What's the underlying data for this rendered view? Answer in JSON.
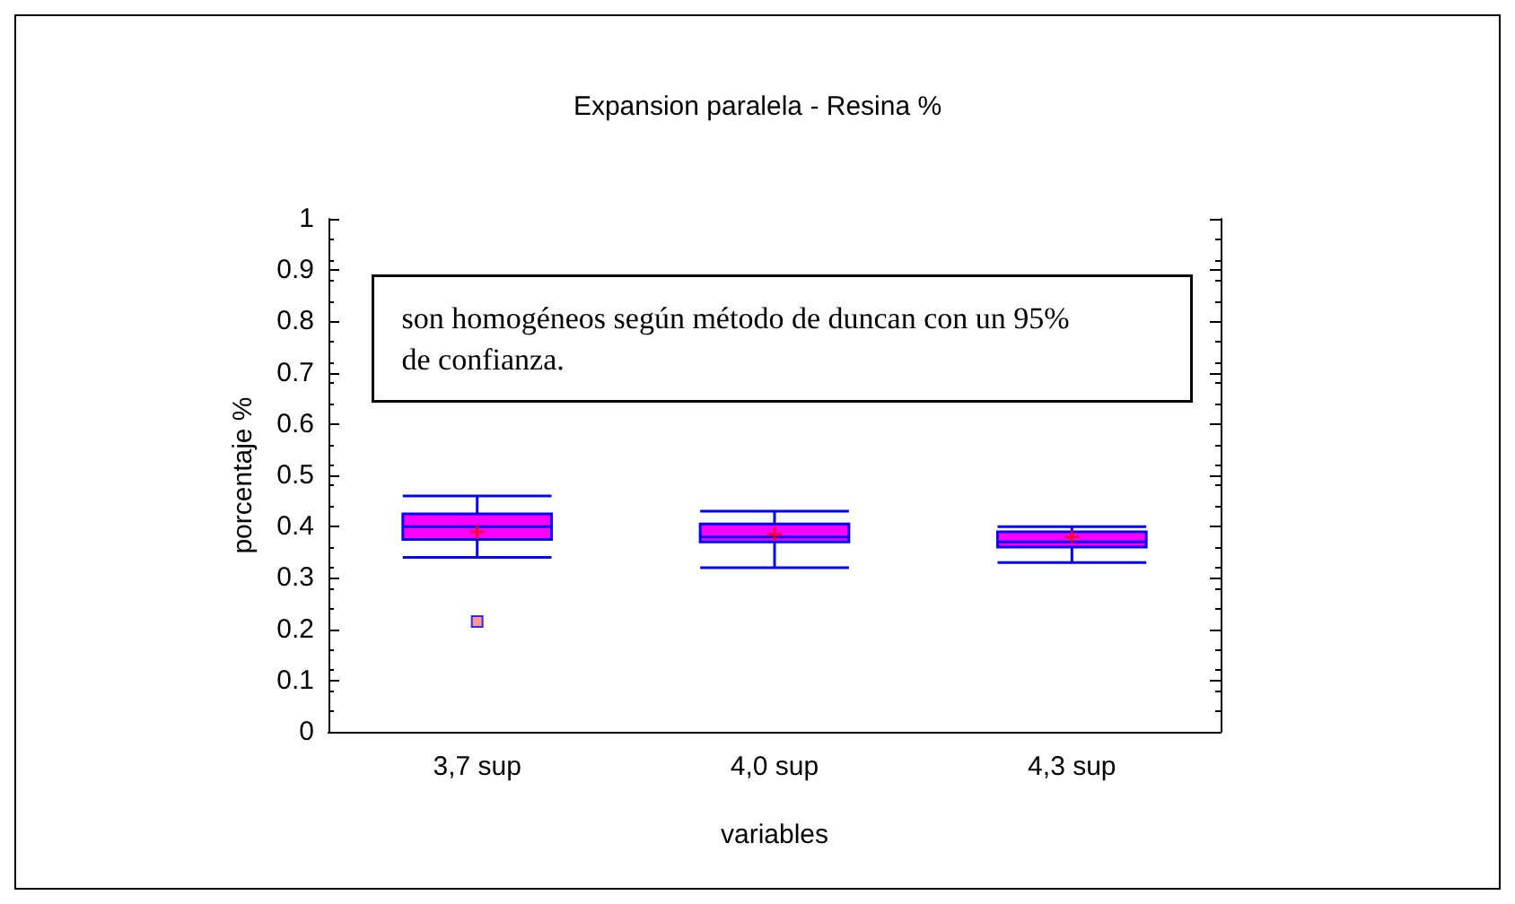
{
  "chart_data": {
    "type": "box",
    "title": "Expansion paralela - Resina %",
    "xlabel": "variables",
    "ylabel": "porcentaje %",
    "categories": [
      "3,7 sup",
      "4,0 sup",
      "4,3 sup"
    ],
    "boxes": [
      {
        "low": 0.34,
        "q1": 0.375,
        "median": 0.4,
        "q3": 0.425,
        "high": 0.46,
        "mean": 0.39,
        "outliers": [
          0.215
        ]
      },
      {
        "low": 0.32,
        "q1": 0.37,
        "median": 0.38,
        "q3": 0.405,
        "high": 0.43,
        "mean": 0.385
      },
      {
        "low": 0.33,
        "q1": 0.36,
        "median": 0.37,
        "q3": 0.39,
        "high": 0.4,
        "mean": 0.38
      }
    ],
    "color": "#ff00ff",
    "ylim": [
      0,
      1
    ],
    "yticks": [
      0,
      0.1,
      0.2,
      0.3,
      0.4,
      0.5,
      0.6,
      0.7,
      0.8,
      0.9,
      1
    ],
    "annotations": [
      "son homogéneos según método de duncan con un 95% de confianza."
    ],
    "grid": false,
    "legend": false
  }
}
